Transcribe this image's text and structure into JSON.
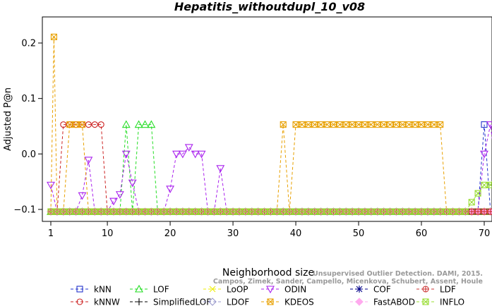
{
  "chart_data": {
    "type": "line",
    "title": "Hepatitis_withoutdupl_10_v08",
    "xlabel": "Neighborhood size",
    "ylabel": "Adjusted P@n",
    "xlim": [
      1,
      73
    ],
    "ylim": [
      -0.13,
      0.245
    ],
    "xticks": [
      1,
      10,
      20,
      30,
      40,
      50,
      60,
      70
    ],
    "yticks": [
      -0.1,
      0.0,
      0.1,
      0.2
    ],
    "ytick_labels": [
      "−0.1",
      "0.0",
      "0.1",
      "0.2"
    ],
    "legend_position": "bottom",
    "credit": [
      "Unsupervised Outlier Detection. DAMI, 2015.",
      "Campos, Zimek, Sander, Campello, Micenkova, Schubert, Assent, Houle"
    ],
    "baseline_value": -0.104,
    "series": [
      {
        "name": "kNN",
        "color": "#2233cc",
        "marker": "square",
        "linestyle": "dashed",
        "points": [
          [
            1,
            -0.104
          ],
          [
            69,
            -0.104
          ],
          [
            70,
            0.053
          ],
          [
            71,
            -0.104
          ],
          [
            73,
            -0.104
          ]
        ]
      },
      {
        "name": "kNNW",
        "color": "#cc2222",
        "marker": "circle",
        "linestyle": "dashed",
        "points": [
          [
            1,
            -0.104
          ],
          [
            2,
            -0.104
          ],
          [
            3,
            0.053
          ],
          [
            4,
            0.053
          ],
          [
            5,
            0.053
          ],
          [
            6,
            0.053
          ],
          [
            7,
            0.053
          ],
          [
            8,
            0.053
          ],
          [
            9,
            0.053
          ],
          [
            10,
            -0.104
          ],
          [
            73,
            -0.104
          ]
        ]
      },
      {
        "name": "LOF",
        "color": "#22dd22",
        "marker": "triangle-up",
        "linestyle": "dashed",
        "points": [
          [
            1,
            -0.104
          ],
          [
            12,
            -0.104
          ],
          [
            13,
            0.053
          ],
          [
            14,
            -0.104
          ],
          [
            15,
            0.053
          ],
          [
            16,
            0.053
          ],
          [
            17,
            0.053
          ],
          [
            18,
            -0.104
          ],
          [
            73,
            -0.104
          ]
        ]
      },
      {
        "name": "SimplifiedLOF",
        "color": "#000000",
        "marker": "plus",
        "linestyle": "dashed",
        "points": [
          [
            1,
            -0.104
          ],
          [
            73,
            -0.104
          ]
        ]
      },
      {
        "name": "LoOP",
        "color": "#eeee00",
        "marker": "cross",
        "linestyle": "dashed",
        "points": [
          [
            1,
            -0.104
          ],
          [
            73,
            -0.104
          ]
        ]
      },
      {
        "name": "LDOF",
        "color": "#9999cc",
        "marker": "diamond",
        "linestyle": "dashed",
        "points": [
          [
            1,
            -0.104
          ],
          [
            73,
            -0.104
          ]
        ]
      },
      {
        "name": "ODIN",
        "color": "#aa22ee",
        "marker": "triangle-down",
        "linestyle": "dashed",
        "points": [
          [
            1,
            -0.056
          ],
          [
            2,
            -0.104
          ],
          [
            5,
            -0.104
          ],
          [
            6,
            -0.075
          ],
          [
            7,
            -0.011
          ],
          [
            8,
            -0.104
          ],
          [
            10,
            -0.104
          ],
          [
            11,
            -0.085
          ],
          [
            12,
            -0.073
          ],
          [
            13,
            0.0
          ],
          [
            14,
            -0.052
          ],
          [
            15,
            -0.104
          ],
          [
            19,
            -0.104
          ],
          [
            20,
            -0.063
          ],
          [
            21,
            0.0
          ],
          [
            22,
            0.0
          ],
          [
            23,
            0.012
          ],
          [
            24,
            0.0
          ],
          [
            25,
            0.0
          ],
          [
            26,
            -0.104
          ],
          [
            27,
            -0.104
          ],
          [
            28,
            -0.026
          ],
          [
            29,
            -0.104
          ],
          [
            69,
            -0.104
          ],
          [
            70,
            0.0
          ],
          [
            71,
            0.053
          ],
          [
            72,
            -0.042
          ],
          [
            73,
            0.0
          ]
        ]
      },
      {
        "name": "KDEOS",
        "color": "#e8a000",
        "marker": "square-x",
        "linestyle": "dashed",
        "points": [
          [
            1,
            -0.104
          ],
          [
            1.5,
            0.211
          ],
          [
            2,
            -0.104
          ],
          [
            3,
            -0.104
          ],
          [
            4,
            0.053
          ],
          [
            5,
            0.053
          ],
          [
            6,
            0.053
          ],
          [
            7,
            -0.104
          ],
          [
            37,
            -0.104
          ],
          [
            38,
            0.053
          ],
          [
            39,
            -0.104
          ],
          [
            40,
            0.053
          ],
          [
            41,
            0.053
          ],
          [
            42,
            0.053
          ],
          [
            43,
            0.053
          ],
          [
            44,
            0.053
          ],
          [
            45,
            0.053
          ],
          [
            46,
            0.053
          ],
          [
            47,
            0.053
          ],
          [
            48,
            0.053
          ],
          [
            49,
            0.053
          ],
          [
            50,
            0.053
          ],
          [
            51,
            0.053
          ],
          [
            52,
            0.053
          ],
          [
            53,
            0.053
          ],
          [
            54,
            0.053
          ],
          [
            55,
            0.053
          ],
          [
            56,
            0.053
          ],
          [
            57,
            0.053
          ],
          [
            58,
            0.053
          ],
          [
            59,
            0.053
          ],
          [
            60,
            0.053
          ],
          [
            61,
            0.053
          ],
          [
            62,
            0.053
          ],
          [
            63,
            0.053
          ],
          [
            64,
            -0.104
          ],
          [
            73,
            -0.104
          ]
        ]
      },
      {
        "name": "COF",
        "color": "#000088",
        "marker": "asterisk",
        "linestyle": "dashed",
        "points": [
          [
            1,
            -0.104
          ],
          [
            73,
            -0.104
          ]
        ]
      },
      {
        "name": "FastABOD",
        "color": "#ffaaee",
        "marker": "diamond-filled",
        "linestyle": "dashed",
        "points": [
          [
            1,
            -0.104
          ],
          [
            73,
            -0.104
          ]
        ]
      },
      {
        "name": "LDF",
        "color": "#cc3333",
        "marker": "circle-plus",
        "linestyle": "dashed",
        "points": [
          [
            1,
            -0.104
          ],
          [
            73,
            -0.104
          ]
        ]
      },
      {
        "name": "INFLO",
        "color": "#99dd33",
        "marker": "square-x",
        "linestyle": "dashed",
        "points": [
          [
            1,
            -0.104
          ],
          [
            67,
            -0.104
          ],
          [
            68,
            -0.087
          ],
          [
            69,
            -0.071
          ],
          [
            70,
            -0.056
          ],
          [
            71,
            -0.056
          ],
          [
            72,
            -0.028
          ],
          [
            73,
            -0.014
          ]
        ]
      }
    ]
  }
}
